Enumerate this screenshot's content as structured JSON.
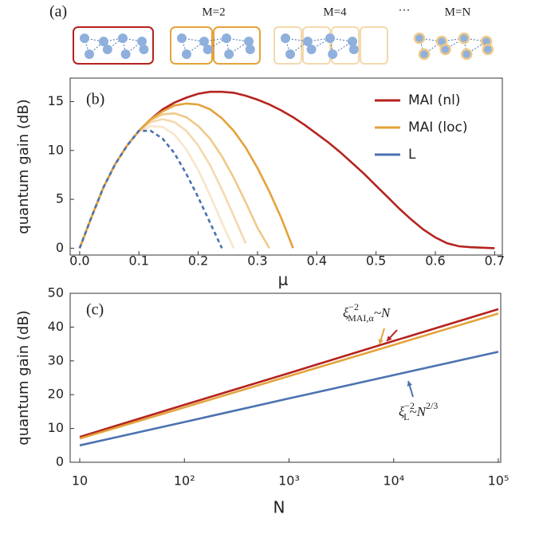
{
  "diagram": {
    "panel_label": "(a)",
    "labels": [
      "M=2",
      "M=4",
      "···",
      "M=N"
    ]
  },
  "chart_data": [
    {
      "type": "line",
      "panel_label": "(b)",
      "xlabel": "μ",
      "ylabel": "quantum gain (dB)",
      "xlim": [
        -0.016,
        0.713
      ],
      "ylim": [
        -0.7,
        17.4
      ],
      "xticks": [
        {
          "value": 0,
          "label": "0.0"
        },
        0.1,
        0.2,
        0.3,
        0.4,
        0.5,
        0.6,
        0.7
      ],
      "yticks": [
        0,
        5,
        10,
        15
      ],
      "legend": "upper right",
      "x": [
        0,
        0.02,
        0.04,
        0.06,
        0.08,
        0.1,
        0.12,
        0.14,
        0.16,
        0.18,
        0.2,
        0.22,
        0.24,
        0.26,
        0.28,
        0.3,
        0.32,
        0.34,
        0.36,
        0.38,
        0.4,
        0.42,
        0.44,
        0.46,
        0.48,
        0.5,
        0.52,
        0.54,
        0.56,
        0.58,
        0.6,
        0.62,
        0.64,
        0.66,
        0.68,
        0.7
      ],
      "series": [
        {
          "name": "MAI (nl)",
          "color": "#b5231f",
          "values": [
            0,
            3.2,
            6.2,
            8.6,
            10.5,
            12.0,
            13.2,
            14.2,
            14.9,
            15.4,
            15.8,
            16.0,
            16.0,
            15.9,
            15.6,
            15.2,
            14.7,
            14.1,
            13.4,
            12.6,
            11.7,
            10.8,
            9.8,
            8.7,
            7.6,
            6.4,
            5.2,
            4.0,
            2.9,
            1.9,
            1.1,
            0.5,
            0.2,
            0.1,
            0.05,
            0
          ]
        },
        {
          "color": "#f7e6cb",
          "values": [
            0,
            3.2,
            6.2,
            8.6,
            10.5,
            11.9,
            12.5,
            12.4,
            11.6,
            10.1,
            8.0,
            5.4,
            2.6,
            0,
            null,
            null,
            null,
            null,
            null,
            null,
            null,
            null,
            null,
            null,
            null,
            null,
            null,
            null,
            null,
            null,
            null,
            null,
            null,
            null,
            null,
            null
          ]
        },
        {
          "color": "#f3d9ad",
          "values": [
            0,
            3.2,
            6.2,
            8.6,
            10.5,
            12.0,
            12.9,
            13.2,
            12.9,
            12.0,
            10.5,
            8.5,
            6.0,
            3.3,
            0.5,
            null,
            null,
            null,
            null,
            null,
            null,
            null,
            null,
            null,
            null,
            null,
            null,
            null,
            null,
            null,
            null,
            null,
            null,
            null,
            null,
            null
          ]
        },
        {
          "color": "#efc98a",
          "values": [
            0,
            3.2,
            6.2,
            8.6,
            10.5,
            12.0,
            13.1,
            13.7,
            13.8,
            13.4,
            12.5,
            11.2,
            9.4,
            7.2,
            4.7,
            2.1,
            0,
            null,
            null,
            null,
            null,
            null,
            null,
            null,
            null,
            null,
            null,
            null,
            null,
            null,
            null,
            null,
            null,
            null,
            null,
            null
          ]
        },
        {
          "name": "MAI (loc)",
          "color": "#e3a33a",
          "values": [
            0,
            3.2,
            6.2,
            8.6,
            10.5,
            12.0,
            13.2,
            14.0,
            14.6,
            14.8,
            14.7,
            14.2,
            13.3,
            12.0,
            10.3,
            8.2,
            5.8,
            3.1,
            0,
            null,
            null,
            null,
            null,
            null,
            null,
            null,
            null,
            null,
            null,
            null,
            null,
            null,
            null,
            null,
            null,
            null
          ]
        },
        {
          "name": "L",
          "color": "#4a72b0",
          "dashed": true,
          "values": [
            0,
            3.2,
            6.2,
            8.6,
            10.5,
            12.0,
            12.0,
            11.2,
            9.7,
            7.6,
            5.2,
            2.6,
            0,
            null,
            null,
            null,
            null,
            null,
            null,
            null,
            null,
            null,
            null,
            null,
            null,
            null,
            null,
            null,
            null,
            null,
            null,
            null,
            null,
            null,
            null,
            null
          ]
        }
      ]
    },
    {
      "type": "line",
      "panel_label": "(c)",
      "xlabel": "N",
      "ylabel": "quantum gain (dB)",
      "xscale": "log",
      "xlim": [
        8.1,
        105400
      ],
      "ylim": [
        0,
        50
      ],
      "xticks": [
        10,
        {
          "value": 100,
          "label": "10²"
        },
        {
          "value": 1000,
          "label": "10³"
        },
        {
          "value": 10000,
          "label": "10⁴"
        },
        {
          "value": 100000,
          "label": "10⁵"
        }
      ],
      "yticks": [
        0,
        10,
        20,
        30,
        40,
        50
      ],
      "x": [
        10,
        100,
        1000,
        10000,
        100000
      ],
      "series": [
        {
          "color": "#b5231f",
          "values": [
            7.5,
            17.0,
            26.4,
            35.9,
            45.3
          ]
        },
        {
          "color": "#e3a33a",
          "values": [
            7.0,
            16.25,
            25.5,
            34.75,
            44.0
          ]
        },
        {
          "color": "#4a72b0",
          "values": [
            5.0,
            11.9,
            18.9,
            25.8,
            32.7
          ]
        }
      ],
      "annotations": [
        {
          "symbol": "ξ",
          "sub": "MAI,α",
          "sup": "−2",
          "rest": "~N"
        },
        {
          "symbol": "ξ",
          "sub": "L",
          "sup": "−2",
          "rest": "~N",
          "rest_sup": "2/3"
        }
      ]
    }
  ]
}
